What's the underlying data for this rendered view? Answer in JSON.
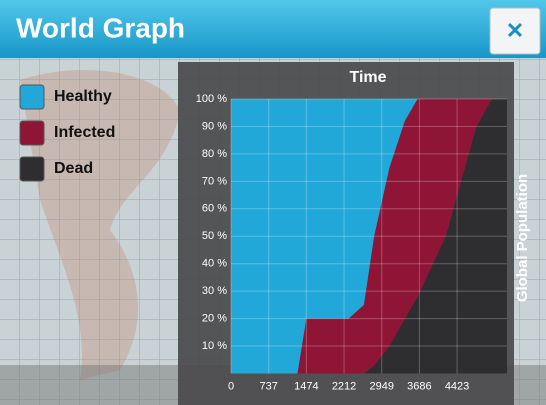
{
  "header": {
    "title": "World Graph",
    "close": "✕"
  },
  "chart_data": {
    "type": "stacked-area",
    "title": "Time",
    "y_label": "Global Population",
    "x": [
      0,
      1300,
      1474,
      2300,
      2600,
      2800,
      3100,
      3400,
      3650,
      3700,
      4200,
      4500,
      4800,
      5100,
      5400
    ],
    "series": [
      {
        "name": "Healthy",
        "color": "#22a8d8",
        "values": [
          100,
          100,
          80,
          80,
          75,
          50,
          25,
          8,
          0,
          0,
          0,
          0,
          0,
          0,
          0
        ]
      },
      {
        "name": "Infected",
        "color": "#8e1535",
        "values": [
          0,
          0,
          20,
          20,
          25,
          47,
          65,
          72,
          72,
          70,
          50,
          30,
          10,
          0,
          0
        ]
      },
      {
        "name": "Dead",
        "color": "#2e2e30",
        "values": [
          0,
          0,
          0,
          0,
          0,
          3,
          10,
          20,
          28,
          30,
          50,
          70,
          90,
          100,
          100
        ]
      }
    ],
    "stack_order": [
      "Dead",
      "Infected",
      "Healthy"
    ],
    "xlim": [
      0,
      5400
    ],
    "xticks": [
      0,
      737,
      1474,
      2212,
      2949,
      3686,
      4423
    ],
    "ylim": [
      0,
      100
    ],
    "yticks": [
      {
        "value": 10,
        "label": "10 %"
      },
      {
        "value": 20,
        "label": "20 %"
      },
      {
        "value": 30,
        "label": "30 %"
      },
      {
        "value": 40,
        "label": "40 %"
      },
      {
        "value": 50,
        "label": "50 %"
      },
      {
        "value": 60,
        "label": "60 %"
      },
      {
        "value": 70,
        "label": "70 %"
      },
      {
        "value": 80,
        "label": "80 %"
      },
      {
        "value": 90,
        "label": "90 %"
      },
      {
        "value": 100,
        "label": "100 %"
      }
    ],
    "grid": true
  }
}
